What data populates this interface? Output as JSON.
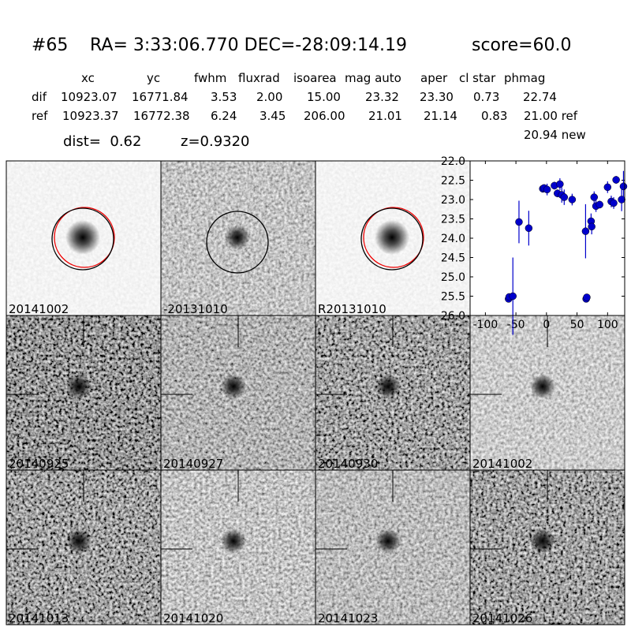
{
  "header": {
    "id": "#65",
    "coords": "RA= 3:33:06.770 DEC=-28:09:14.19",
    "score": "score=60.0"
  },
  "table": {
    "columns": [
      "xc",
      "yc",
      "fwhm",
      "fluxrad",
      "isoarea",
      "mag auto",
      "aper",
      "cl star",
      "phmag"
    ],
    "rows": [
      [
        "dif",
        "10923.07",
        "16771.84",
        "3.53",
        "2.00",
        "15.00",
        "23.32",
        "23.30",
        "0.73",
        "22.74"
      ],
      [
        "ref",
        "10923.37",
        "16772.38",
        "6.24",
        "3.45",
        "206.00",
        "21.01",
        "21.14",
        "0.83",
        "21.00 ref"
      ]
    ],
    "extra": "20.94 new"
  },
  "summary": {
    "dist": "dist=  0.62",
    "z": "z=0.9320"
  },
  "stamps": [
    {
      "label": "20141002"
    },
    {
      "label": "-20131010"
    },
    {
      "label": "R20131010"
    },
    {
      "label": "20140925"
    },
    {
      "label": "20140927"
    },
    {
      "label": "20140930"
    },
    {
      "label": "20141002",
      "color": "#ff0000"
    },
    {
      "label": "20141013"
    },
    {
      "label": "20141020"
    },
    {
      "label": "20141023"
    },
    {
      "label": "20141026"
    }
  ],
  "chart_data": {
    "type": "scatter",
    "color": "#0000cc",
    "x": [
      -62,
      -61,
      -55,
      -45,
      -29,
      -6,
      -4,
      1,
      13,
      18,
      22,
      25,
      29,
      42,
      64,
      65,
      66,
      73,
      74,
      78,
      81,
      87,
      100,
      106,
      110,
      114,
      123,
      126
    ],
    "values": [
      25.57,
      25.52,
      25.5,
      23.58,
      23.74,
      22.72,
      22.7,
      22.74,
      22.64,
      22.84,
      22.6,
      22.88,
      22.94,
      23.0,
      23.82,
      25.57,
      25.53,
      23.56,
      23.7,
      22.94,
      23.17,
      23.13,
      22.68,
      23.05,
      23.09,
      22.49,
      23.0,
      22.66
    ],
    "errors": [
      0.05,
      0.05,
      1.0,
      0.55,
      0.45,
      0.1,
      0.08,
      0.15,
      0.1,
      0.1,
      0.15,
      0.2,
      0.2,
      0.15,
      0.7,
      0.05,
      0.05,
      0.2,
      0.2,
      0.15,
      0.15,
      0.1,
      0.15,
      0.15,
      0.15,
      0.1,
      0.3,
      0.4
    ],
    "xlim": [
      -125,
      128
    ],
    "ylim": [
      26,
      22
    ],
    "xticks": [
      -100,
      -50,
      0,
      50,
      100
    ],
    "yticks": [
      {
        "value": 22,
        "label": "22.0"
      },
      {
        "value": 22.5,
        "label": "22.5"
      },
      {
        "value": 23,
        "label": "23.0"
      },
      {
        "value": 23.5,
        "label": "23.5"
      },
      {
        "value": 24,
        "label": "24.0"
      },
      {
        "value": 24.5,
        "label": "24.5"
      },
      {
        "value": 25,
        "label": "25.0"
      },
      {
        "value": 25.5,
        "label": "25.5"
      },
      {
        "value": 26,
        "label": "26.0"
      }
    ]
  }
}
